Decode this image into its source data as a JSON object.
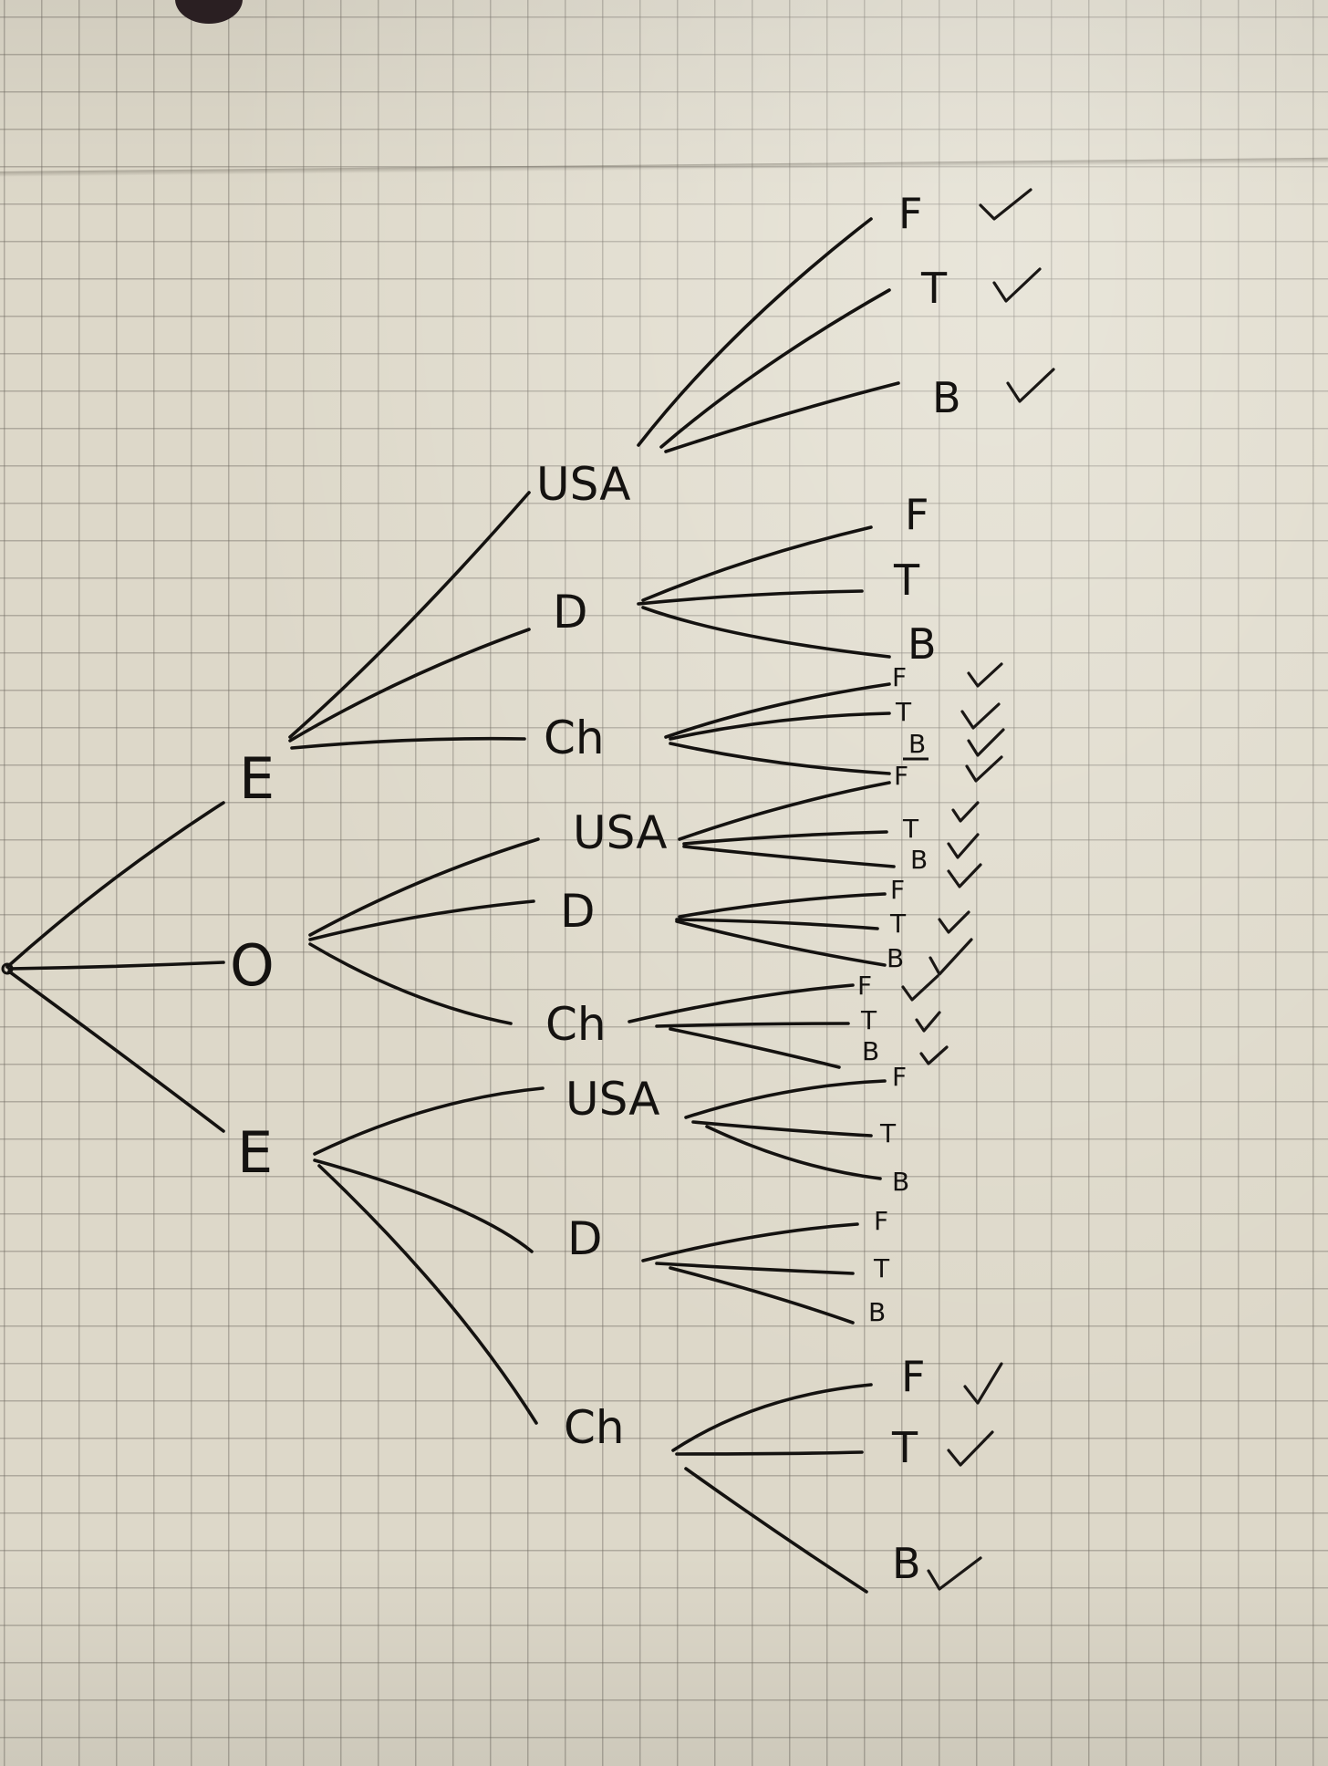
{
  "tree": {
    "root": "",
    "level1": [
      {
        "label": "E",
        "children": [
          {
            "label": "USA",
            "leaves": [
              {
                "label": "F",
                "check": true
              },
              {
                "label": "T",
                "check": true
              },
              {
                "label": "B",
                "check": true
              }
            ]
          },
          {
            "label": "D",
            "leaves": [
              {
                "label": "F",
                "check": false
              },
              {
                "label": "T",
                "check": false
              },
              {
                "label": "B",
                "check": false
              }
            ]
          },
          {
            "label": "Ch",
            "leaves": [
              {
                "label": "F",
                "check": true
              },
              {
                "label": "T",
                "check": true
              },
              {
                "label": "B",
                "check": true
              }
            ]
          }
        ]
      },
      {
        "label": "O",
        "children": [
          {
            "label": "USA",
            "leaves": [
              {
                "label": "F",
                "check": true
              },
              {
                "label": "T",
                "check": true
              },
              {
                "label": "B",
                "check": true
              }
            ]
          },
          {
            "label": "D",
            "leaves": [
              {
                "label": "F",
                "check": true
              },
              {
                "label": "T",
                "check": true
              },
              {
                "label": "B",
                "check": true
              }
            ]
          },
          {
            "label": "Ch",
            "leaves": [
              {
                "label": "F",
                "check": true
              },
              {
                "label": "T",
                "check": true
              },
              {
                "label": "B",
                "check": true
              }
            ]
          }
        ]
      },
      {
        "label": "E",
        "children": [
          {
            "label": "USA",
            "leaves": [
              {
                "label": "F",
                "check": false
              },
              {
                "label": "T",
                "check": false
              },
              {
                "label": "B",
                "check": false
              }
            ]
          },
          {
            "label": "D",
            "leaves": [
              {
                "label": "F",
                "check": false
              },
              {
                "label": "T",
                "check": false
              },
              {
                "label": "B",
                "check": false
              }
            ]
          },
          {
            "label": "Ch",
            "leaves": [
              {
                "label": "F",
                "check": true
              },
              {
                "label": "T",
                "check": true
              },
              {
                "label": "B",
                "check": true
              }
            ]
          }
        ]
      }
    ]
  },
  "colors": {
    "ink": "#141210",
    "paper": "#ddd8c9",
    "grid": "#6e695f"
  }
}
